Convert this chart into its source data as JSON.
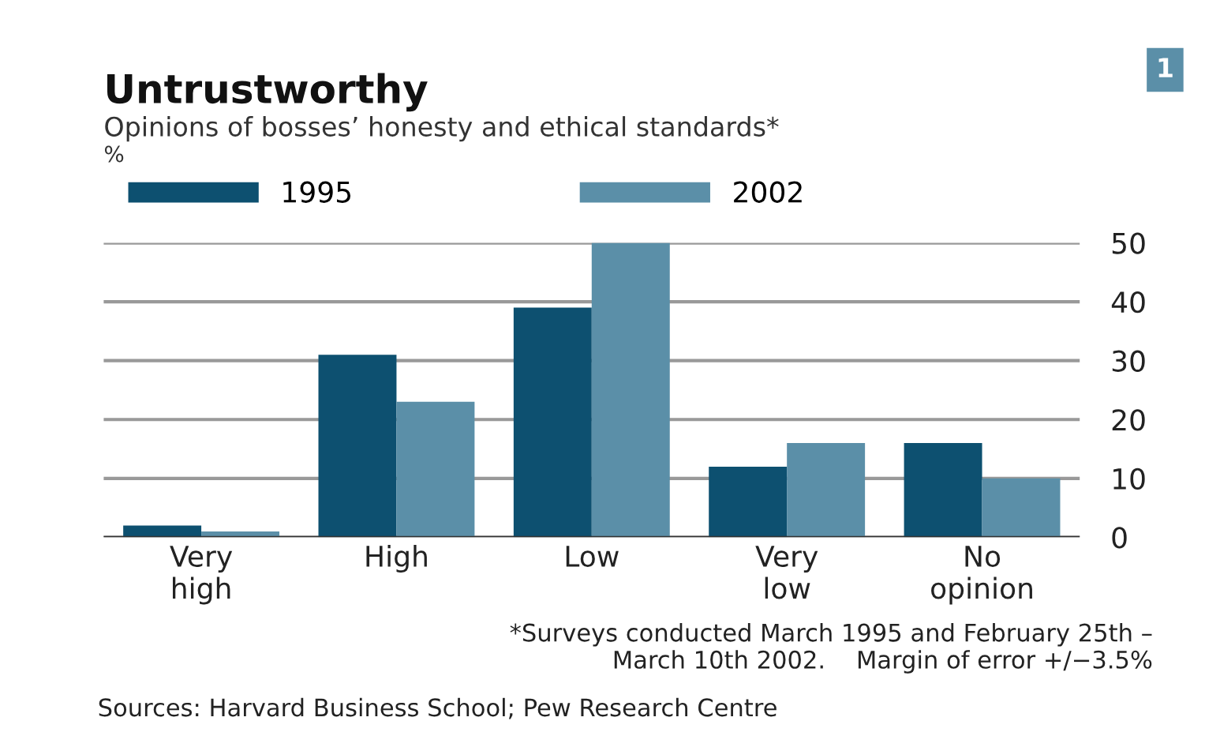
{
  "chart_data": {
    "type": "bar",
    "title": "Untrustworthy",
    "subtitle": "Opinions of bosses’ honesty and ethical standards*",
    "ylabel": "%",
    "categories": [
      "Very\nhigh",
      "High",
      "Low",
      "Very\nlow",
      "No\nopinion"
    ],
    "series": [
      {
        "name": "1995",
        "color": "#0d5070",
        "values": [
          2,
          31,
          39,
          12,
          16
        ]
      },
      {
        "name": "2002",
        "color": "#5b8fa8",
        "values": [
          1,
          23,
          50,
          16,
          10
        ]
      }
    ],
    "ylim": [
      0,
      50
    ],
    "yticks": [
      0,
      10,
      20,
      30,
      40,
      50
    ],
    "grid": "y",
    "legend": "top left",
    "annotations": [
      "1",
      "*Surveys conducted March 1995 and February 25th –\nMarch 10th 2002.    Margin of error +/−3.5%",
      "Sources: Harvard Business School; Pew Research Centre"
    ]
  }
}
